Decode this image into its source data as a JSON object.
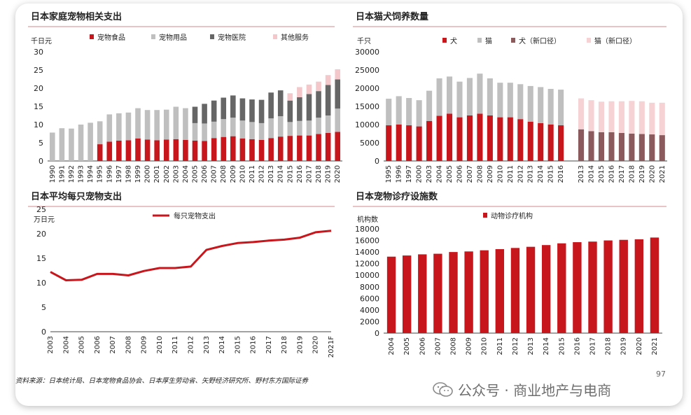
{
  "colors": {
    "red": "#c8161d",
    "grey": "#bfbfbf",
    "darkgrey": "#666666",
    "pink": "#f4c7cb",
    "dogNew": "#8b5a5d",
    "catNew": "#f6d2d4",
    "rule": "#d9a0a0"
  },
  "footnote": "资料来源：日本统计局、日本宠物食品协会、日本厚生劳动省、矢野经济研究所、野村东方国际证券",
  "page_number": "97",
  "watermark": {
    "icon": "wechat-icon",
    "text": "公众号 · 商业地产与电商"
  },
  "chart_data": [
    {
      "type": "bar",
      "stacked": true,
      "title": "日本家庭宠物相关支出",
      "ylabel": "千日元",
      "ylim": [
        0,
        30
      ],
      "yticks": [
        0,
        5,
        10,
        15,
        20,
        25,
        30
      ],
      "categories": [
        "1990",
        "1991",
        "1992",
        "1993",
        "1994",
        "1995",
        "1996",
        "1997",
        "1998",
        "1999",
        "2000",
        "2001",
        "2002",
        "2003",
        "2004",
        "2005",
        "2006",
        "2007",
        "2008",
        "2009",
        "2010",
        "2011",
        "2012",
        "2013",
        "2014",
        "2015",
        "2016",
        "2017",
        "2018",
        "2019",
        "2020"
      ],
      "series": [
        {
          "name": "宠物食品",
          "color": "#c8161d",
          "values": [
            0,
            0,
            0,
            0,
            0,
            4.6,
            5.3,
            5.6,
            5.7,
            6.2,
            5.9,
            5.7,
            5.9,
            6.0,
            5.8,
            5.6,
            5.5,
            6.3,
            6.6,
            6.8,
            6.2,
            6.0,
            5.8,
            6.3,
            6.7,
            6.9,
            7.0,
            7.0,
            7.4,
            7.7,
            8.0
          ]
        },
        {
          "name": "宠物用品",
          "color": "#bfbfbf",
          "values": [
            7.8,
            9.0,
            8.9,
            10.0,
            10.5,
            6.3,
            7.5,
            7.5,
            7.6,
            8.3,
            8.1,
            8.3,
            8.2,
            8.9,
            8.7,
            4.8,
            4.8,
            4.5,
            4.9,
            5.1,
            4.9,
            4.7,
            4.6,
            5.4,
            5.6,
            3.8,
            4.0,
            4.1,
            4.5,
            4.8,
            6.4
          ]
        },
        {
          "name": "宠物医院",
          "color": "#666666",
          "values": [
            0,
            0,
            0,
            0,
            0,
            0,
            0,
            0,
            0,
            0,
            0,
            0,
            0,
            0,
            0,
            4.5,
            5.4,
            5.8,
            5.9,
            6.1,
            6.1,
            6.2,
            6.4,
            7.1,
            7.1,
            5.9,
            6.5,
            7.3,
            7.3,
            8.4,
            8.0
          ]
        },
        {
          "name": "其他服务",
          "color": "#f4c7cb",
          "values": [
            0,
            0,
            0,
            0,
            0,
            0,
            0,
            0,
            0,
            0,
            0,
            0,
            0,
            0,
            0,
            0,
            0,
            0,
            0,
            0,
            0,
            0,
            0,
            0,
            0,
            2.0,
            2.8,
            2.6,
            2.6,
            2.7,
            2.8
          ]
        }
      ]
    },
    {
      "type": "bar",
      "stacked": true,
      "title": "日本猫犬饲养数量",
      "ylabel": "千只",
      "ylim": [
        0,
        30000
      ],
      "yticks": [
        0,
        5000,
        10000,
        15000,
        20000,
        25000,
        30000
      ],
      "categories": [
        "1995",
        "1996",
        "1997",
        "2000",
        "2003",
        "2004",
        "2005",
        "2006",
        "2007",
        "2008",
        "2009",
        "2010",
        "2011",
        "2012",
        "2013",
        "2014",
        "2015",
        "2016",
        "",
        "2013",
        "2014",
        "2015",
        "2016",
        "2017",
        "2018",
        "2019",
        "2020",
        "2021"
      ],
      "series": [
        {
          "name": "犬",
          "color": "#c8161d",
          "values": [
            9800,
            10000,
            9800,
            9500,
            11000,
            12400,
            13000,
            12000,
            12500,
            13000,
            12500,
            12000,
            12000,
            11500,
            10800,
            10400,
            10000,
            9800,
            0,
            0,
            0,
            0,
            0,
            0,
            0,
            0,
            0,
            0
          ]
        },
        {
          "name": "猫",
          "color": "#bfbfbf",
          "values": [
            7300,
            7800,
            7500,
            7200,
            8300,
            10300,
            10200,
            9800,
            10300,
            11000,
            10200,
            9500,
            9500,
            9600,
            9800,
            9900,
            9800,
            9800,
            0,
            0,
            0,
            0,
            0,
            0,
            0,
            0,
            0,
            0
          ]
        },
        {
          "name": "犬（新口径）",
          "color": "#8b5a5d",
          "values": [
            0,
            0,
            0,
            0,
            0,
            0,
            0,
            0,
            0,
            0,
            0,
            0,
            0,
            0,
            0,
            0,
            0,
            0,
            0,
            8700,
            8200,
            7900,
            7900,
            7700,
            7500,
            7400,
            7300,
            7100
          ]
        },
        {
          "name": "猫（新口径）",
          "color": "#f6d2d4",
          "values": [
            0,
            0,
            0,
            0,
            0,
            0,
            0,
            0,
            0,
            0,
            0,
            0,
            0,
            0,
            0,
            0,
            0,
            0,
            0,
            8500,
            8500,
            8400,
            8500,
            8700,
            9000,
            9000,
            8700,
            8900
          ]
        }
      ]
    },
    {
      "type": "line",
      "title": "日本平均每只宠物支出",
      "ylabel": "万日元",
      "ylim": [
        0,
        25
      ],
      "yticks": [
        0,
        5,
        10,
        15,
        20,
        25
      ],
      "categories": [
        "2003",
        "2004",
        "2005",
        "2006",
        "2007",
        "2008",
        "2009",
        "2010",
        "2011",
        "2012",
        "2013",
        "2014",
        "2015",
        "2016",
        "2017",
        "2018",
        "2019",
        "2020",
        "2021F"
      ],
      "series": [
        {
          "name": "每只宠物支出",
          "color": "#c8161d",
          "values": [
            12.2,
            10.5,
            10.6,
            11.8,
            11.8,
            11.5,
            12.4,
            13.0,
            13.0,
            13.3,
            16.7,
            17.5,
            18.1,
            18.3,
            18.6,
            18.8,
            19.2,
            20.3,
            20.6
          ]
        }
      ]
    },
    {
      "type": "bar",
      "title": "日本宠物诊疗设施数",
      "ylabel": "机构数",
      "ylim": [
        0,
        18000
      ],
      "yticks": [
        0,
        2000,
        4000,
        6000,
        8000,
        10000,
        12000,
        14000,
        16000,
        18000
      ],
      "categories": [
        "2004",
        "2005",
        "2006",
        "2007",
        "2008",
        "2009",
        "2010",
        "2011",
        "2012",
        "2013",
        "2014",
        "2015",
        "2016",
        "2017",
        "2018",
        "2019",
        "2020",
        "2021"
      ],
      "series": [
        {
          "name": "动物诊疗机构",
          "color": "#c8161d",
          "values": [
            13200,
            13400,
            13600,
            13700,
            14000,
            14100,
            14300,
            14500,
            14700,
            14900,
            15200,
            15500,
            15700,
            15800,
            16000,
            16100,
            16200,
            16500
          ]
        }
      ]
    }
  ]
}
